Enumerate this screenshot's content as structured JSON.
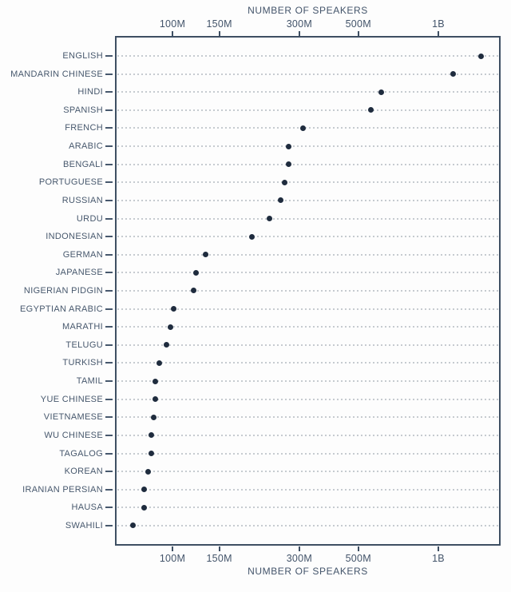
{
  "chart_data": {
    "type": "scatter",
    "variant": "dot-plot",
    "orientation": "horizontal",
    "xlabel_top": "NUMBER OF SPEAKERS",
    "xlabel_bottom": "NUMBER OF SPEAKERS",
    "x_scale": "log",
    "x_unit": "millions of speakers",
    "xlim_millions": [
      61,
      1720
    ],
    "x_ticks": [
      {
        "value": 100,
        "label": "100M"
      },
      {
        "value": 150,
        "label": "150M"
      },
      {
        "value": 300,
        "label": "300M"
      },
      {
        "value": 500,
        "label": "500M"
      },
      {
        "value": 1000,
        "label": "1B"
      }
    ],
    "grid": "dotted horizontal leader lines per category",
    "legend": "none",
    "points": [
      {
        "language": "ENGLISH",
        "speakers_millions": 1452
      },
      {
        "language": "MANDARIN CHINESE",
        "speakers_millions": 1138
      },
      {
        "language": "HINDI",
        "speakers_millions": 609
      },
      {
        "language": "SPANISH",
        "speakers_millions": 559
      },
      {
        "language": "FRENCH",
        "speakers_millions": 310
      },
      {
        "language": "ARABIC",
        "speakers_millions": 274
      },
      {
        "language": "BENGALI",
        "speakers_millions": 273
      },
      {
        "language": "PORTUGUESE",
        "speakers_millions": 264
      },
      {
        "language": "RUSSIAN",
        "speakers_millions": 255
      },
      {
        "language": "URDU",
        "speakers_millions": 232
      },
      {
        "language": "INDONESIAN",
        "speakers_millions": 199
      },
      {
        "language": "GERMAN",
        "speakers_millions": 133
      },
      {
        "language": "JAPANESE",
        "speakers_millions": 123
      },
      {
        "language": "NIGERIAN PIDGIN",
        "speakers_millions": 120
      },
      {
        "language": "EGYPTIAN ARABIC",
        "speakers_millions": 101
      },
      {
        "language": "MARATHI",
        "speakers_millions": 98
      },
      {
        "language": "TELUGU",
        "speakers_millions": 95
      },
      {
        "language": "TURKISH",
        "speakers_millions": 89
      },
      {
        "language": "TAMIL",
        "speakers_millions": 86
      },
      {
        "language": "YUE CHINESE",
        "speakers_millions": 86
      },
      {
        "language": "VIETNAMESE",
        "speakers_millions": 85
      },
      {
        "language": "WU CHINESE",
        "speakers_millions": 83
      },
      {
        "language": "TAGALOG",
        "speakers_millions": 83
      },
      {
        "language": "KOREAN",
        "speakers_millions": 81
      },
      {
        "language": "IRANIAN PERSIAN",
        "speakers_millions": 78.5
      },
      {
        "language": "HAUSA",
        "speakers_millions": 78
      },
      {
        "language": "SWAHILI",
        "speakers_millions": 71
      }
    ]
  },
  "colors": {
    "background": "#fdfdfd",
    "dot": "#1f2c3e",
    "axis_line": "#3e4f63",
    "label_text": "#47586d",
    "tick_label_text": "#43546a",
    "leader_dots": "#c6cbd0"
  }
}
